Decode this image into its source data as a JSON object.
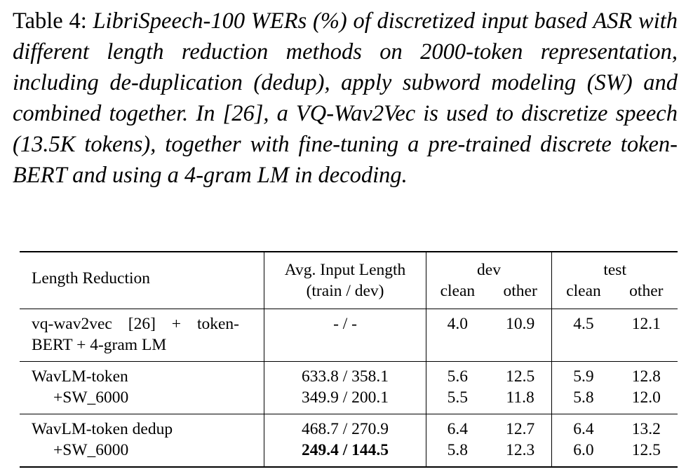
{
  "caption": {
    "label": "Table 4:",
    "text": "LibriSpeech-100 WERs (%) of discretized input based ASR with different length reduction methods on 2000-token representation, including de-duplication (dedup), apply subword modeling (SW) and combined together. In [26], a VQ-Wav2Vec is used to discretize speech (13.5K tokens), together with fine-tuning a pre-trained discrete token-BERT and using a 4-gram LM in decoding."
  },
  "table": {
    "header": {
      "method": "Length Reduction",
      "length_line1": "Avg. Input Length",
      "length_line2": "(train / dev)",
      "dev": "dev",
      "test": "test",
      "clean": "clean",
      "other": "other"
    },
    "groups": [
      {
        "rows": [
          {
            "method_line1": "vq-wav2vec [26] + token-",
            "method_line2": "BERT + 4-gram LM",
            "length": "- / -",
            "dev_clean": "4.0",
            "dev_other": "10.9",
            "test_clean": "4.5",
            "test_other": "12.1"
          }
        ]
      },
      {
        "rows": [
          {
            "method": "WavLM-token",
            "length": "633.8 / 358.1",
            "dev_clean": "5.6",
            "dev_other": "12.5",
            "test_clean": "5.9",
            "test_other": "12.8"
          },
          {
            "method": "+SW_6000",
            "length": "349.9 / 200.1",
            "dev_clean": "5.5",
            "dev_other": "11.8",
            "test_clean": "5.8",
            "test_other": "12.0"
          }
        ]
      },
      {
        "rows": [
          {
            "method": "WavLM-token dedup",
            "length": "468.7 / 270.9",
            "dev_clean": "6.4",
            "dev_other": "12.7",
            "test_clean": "6.4",
            "test_other": "13.2"
          },
          {
            "method": "+SW_6000",
            "length": "249.4 / 144.5",
            "dev_clean": "5.8",
            "dev_other": "12.3",
            "test_clean": "6.0",
            "test_other": "12.5"
          }
        ]
      }
    ]
  }
}
